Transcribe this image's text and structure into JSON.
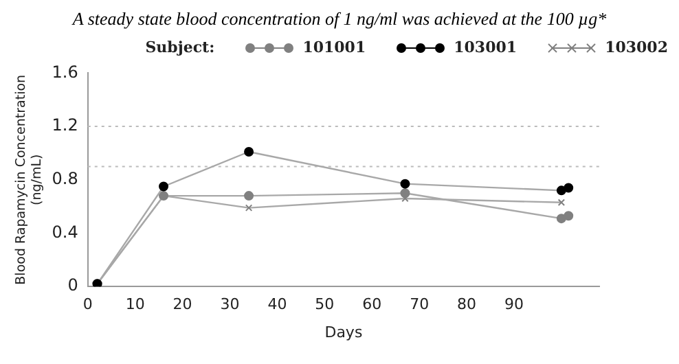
{
  "chart_data": {
    "type": "line",
    "title": "A steady state blood concentration of  1 ng/ml was achieved at the 100 µg*",
    "xlabel": "Days",
    "ylabel": "Blood Rapamycin Concentration\n(ng/mL)",
    "legend_title": "Subject:",
    "legend": "top",
    "xlim": [
      0,
      108
    ],
    "xticks": [
      0,
      10,
      20,
      30,
      40,
      50,
      60,
      70,
      80,
      90
    ],
    "ylim": [
      0,
      1.6
    ],
    "yticks": [
      0,
      0.4,
      0.8,
      1.2,
      1.6
    ],
    "grid": false,
    "series": [
      {
        "name": "101001",
        "color": "#808080",
        "marker": "circle",
        "x": [
          2,
          16,
          34,
          67,
          100,
          101.5
        ],
        "values": [
          0.02,
          0.68,
          0.68,
          0.7,
          0.51,
          0.53
        ]
      },
      {
        "name": "103001",
        "color": "#000000",
        "marker": "circle",
        "x": [
          2,
          16,
          34,
          67,
          100,
          101.5
        ],
        "values": [
          0.02,
          0.75,
          1.01,
          0.77,
          0.72,
          0.74
        ]
      },
      {
        "name": "103002",
        "color": "#808080",
        "marker": "cross",
        "x": [
          2,
          16,
          34,
          67,
          100
        ],
        "values": [
          0.02,
          0.68,
          0.59,
          0.66,
          0.63
        ]
      }
    ],
    "ref_lines": [
      {
        "axis": "y",
        "value": 1.2,
        "color": "#bbbbbb",
        "line_style": "dotted"
      },
      {
        "axis": "y",
        "value": 0.9,
        "color": "#bbbbbb",
        "line_style": "dotted"
      }
    ]
  }
}
